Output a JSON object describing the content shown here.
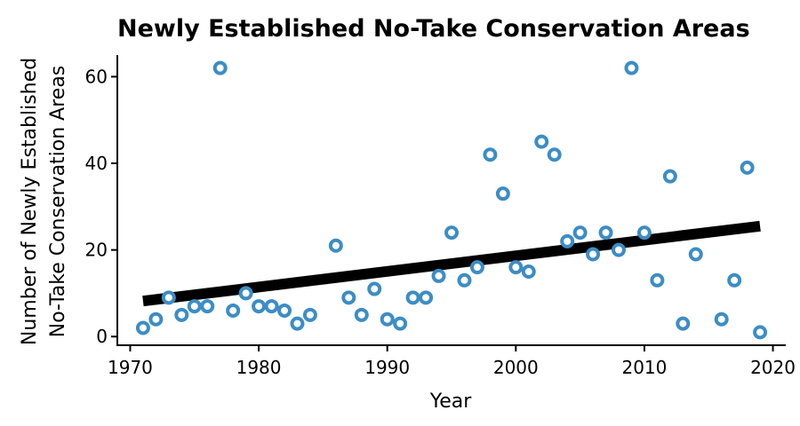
{
  "chart_data": {
    "type": "scatter",
    "title": "Newly Established No-Take Conservation Areas",
    "xlabel": "Year",
    "ylabel_lines": [
      "Number of Newly Established",
      "No-Take Conservation Areas"
    ],
    "xlim": [
      1969,
      2021
    ],
    "ylim": [
      -2,
      65
    ],
    "xticks": [
      1970,
      1980,
      1990,
      2000,
      2010,
      2020
    ],
    "yticks": [
      0,
      20,
      40,
      60
    ],
    "grid": false,
    "legend": "none",
    "point_color": "#3c8dc5",
    "trend_color": "#000000",
    "points": [
      {
        "x": 1971,
        "y": 2
      },
      {
        "x": 1972,
        "y": 4
      },
      {
        "x": 1973,
        "y": 9
      },
      {
        "x": 1974,
        "y": 5
      },
      {
        "x": 1975,
        "y": 7
      },
      {
        "x": 1976,
        "y": 7
      },
      {
        "x": 1977,
        "y": 62
      },
      {
        "x": 1978,
        "y": 6
      },
      {
        "x": 1979,
        "y": 10
      },
      {
        "x": 1980,
        "y": 7
      },
      {
        "x": 1981,
        "y": 7
      },
      {
        "x": 1982,
        "y": 6
      },
      {
        "x": 1983,
        "y": 3
      },
      {
        "x": 1984,
        "y": 5
      },
      {
        "x": 1986,
        "y": 21
      },
      {
        "x": 1987,
        "y": 9
      },
      {
        "x": 1988,
        "y": 5
      },
      {
        "x": 1989,
        "y": 11
      },
      {
        "x": 1990,
        "y": 4
      },
      {
        "x": 1991,
        "y": 3
      },
      {
        "x": 1992,
        "y": 9
      },
      {
        "x": 1993,
        "y": 9
      },
      {
        "x": 1994,
        "y": 14
      },
      {
        "x": 1995,
        "y": 24
      },
      {
        "x": 1996,
        "y": 13
      },
      {
        "x": 1997,
        "y": 16
      },
      {
        "x": 1998,
        "y": 42
      },
      {
        "x": 1999,
        "y": 33
      },
      {
        "x": 2000,
        "y": 16
      },
      {
        "x": 2001,
        "y": 15
      },
      {
        "x": 2002,
        "y": 45
      },
      {
        "x": 2003,
        "y": 42
      },
      {
        "x": 2004,
        "y": 22
      },
      {
        "x": 2005,
        "y": 24
      },
      {
        "x": 2006,
        "y": 19
      },
      {
        "x": 2007,
        "y": 24
      },
      {
        "x": 2008,
        "y": 20
      },
      {
        "x": 2009,
        "y": 62
      },
      {
        "x": 2010,
        "y": 24
      },
      {
        "x": 2011,
        "y": 13
      },
      {
        "x": 2012,
        "y": 37
      },
      {
        "x": 2013,
        "y": 3
      },
      {
        "x": 2014,
        "y": 19
      },
      {
        "x": 2016,
        "y": 4
      },
      {
        "x": 2017,
        "y": 13
      },
      {
        "x": 2018,
        "y": 39
      },
      {
        "x": 2019,
        "y": 1
      }
    ],
    "trend_line": {
      "x": [
        1971,
        2019
      ],
      "y": [
        8.2,
        25.5
      ]
    }
  }
}
